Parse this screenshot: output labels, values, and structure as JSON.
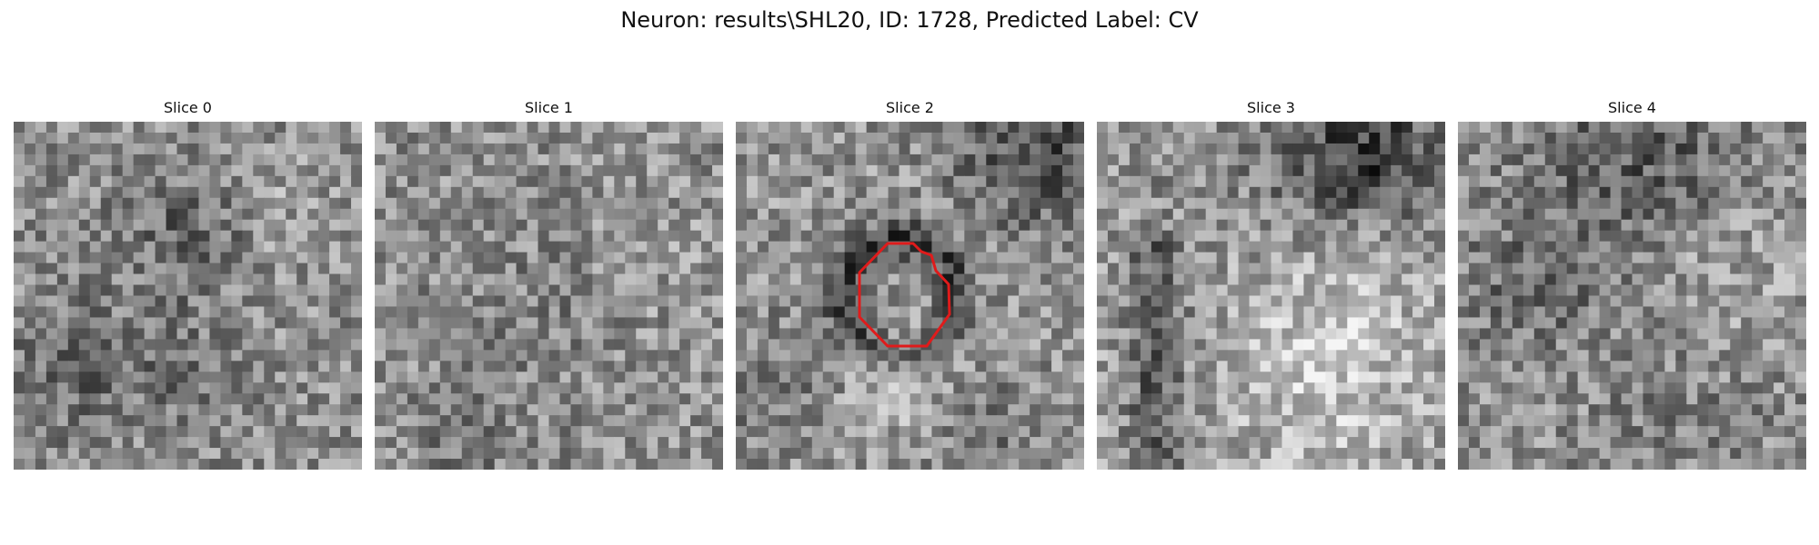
{
  "figure": {
    "title": "Neuron: results\\SHL20, ID: 1728, Predicted Label: CV"
  },
  "panels": [
    {
      "label": "Slice 0",
      "highlighted": false
    },
    {
      "label": "Slice 1",
      "highlighted": false
    },
    {
      "label": "Slice 2",
      "highlighted": true
    },
    {
      "label": "Slice 3",
      "highlighted": false
    },
    {
      "label": "Slice 4",
      "highlighted": false
    }
  ],
  "colors": {
    "outline": "#e01b1b",
    "colormap": "grayscale"
  }
}
